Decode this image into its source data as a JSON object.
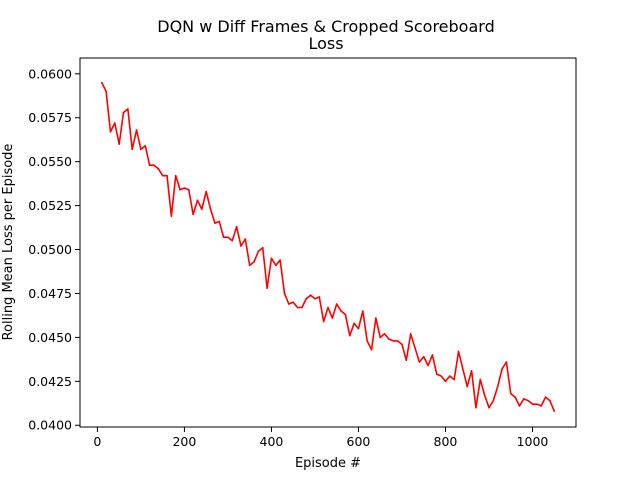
{
  "chart_data": {
    "type": "line",
    "title_line1": "DQN w Diff Frames & Cropped Scoreboard",
    "title_line2": "Loss",
    "xlabel": "Episode #",
    "ylabel": "Rolling Mean Loss per Episode",
    "xlim": [
      -40,
      1100
    ],
    "ylim": [
      0.0399,
      0.0609
    ],
    "grid": false,
    "xticks": [
      {
        "value": 0,
        "label": "0"
      },
      {
        "value": 200,
        "label": "200"
      },
      {
        "value": 400,
        "label": "400"
      },
      {
        "value": 600,
        "label": "600"
      },
      {
        "value": 800,
        "label": "800"
      },
      {
        "value": 1000,
        "label": "1000"
      }
    ],
    "yticks": [
      {
        "value": 0.04,
        "label": "0.0400"
      },
      {
        "value": 0.0425,
        "label": "0.0425"
      },
      {
        "value": 0.045,
        "label": "0.0450"
      },
      {
        "value": 0.0475,
        "label": "0.0475"
      },
      {
        "value": 0.05,
        "label": "0.0500"
      },
      {
        "value": 0.0525,
        "label": "0.0525"
      },
      {
        "value": 0.055,
        "label": "0.0550"
      },
      {
        "value": 0.0575,
        "label": "0.0575"
      },
      {
        "value": 0.06,
        "label": "0.0600"
      }
    ],
    "series": [
      {
        "color": "#ff0000",
        "x": [
          10,
          20,
          30,
          40,
          50,
          60,
          70,
          80,
          90,
          100,
          110,
          120,
          130,
          140,
          150,
          160,
          170,
          180,
          190,
          200,
          210,
          220,
          230,
          240,
          250,
          260,
          270,
          280,
          290,
          300,
          310,
          320,
          330,
          340,
          350,
          360,
          370,
          380,
          390,
          400,
          410,
          420,
          430,
          440,
          450,
          460,
          470,
          480,
          490,
          500,
          510,
          520,
          530,
          540,
          550,
          560,
          570,
          580,
          590,
          600,
          610,
          620,
          630,
          640,
          650,
          660,
          670,
          680,
          690,
          700,
          710,
          720,
          730,
          740,
          750,
          760,
          770,
          780,
          790,
          800,
          810,
          820,
          830,
          840,
          850,
          860,
          870,
          880,
          890,
          900,
          910,
          920,
          930,
          940,
          950,
          960,
          970,
          980,
          990,
          1000,
          1010,
          1020,
          1030,
          1040,
          1050
        ],
        "y": [
          0.0595,
          0.059,
          0.0567,
          0.0572,
          0.056,
          0.0578,
          0.058,
          0.0557,
          0.0568,
          0.0557,
          0.0559,
          0.0548,
          0.0548,
          0.0546,
          0.0542,
          0.0542,
          0.0519,
          0.0542,
          0.0534,
          0.0535,
          0.0534,
          0.052,
          0.0528,
          0.0523,
          0.0533,
          0.0523,
          0.0515,
          0.0516,
          0.0507,
          0.0507,
          0.0505,
          0.0513,
          0.0502,
          0.0506,
          0.0491,
          0.0493,
          0.0499,
          0.0501,
          0.0478,
          0.0495,
          0.0491,
          0.0494,
          0.0475,
          0.0469,
          0.047,
          0.0467,
          0.0467,
          0.0472,
          0.0474,
          0.0472,
          0.0473,
          0.0459,
          0.0467,
          0.0461,
          0.0469,
          0.0465,
          0.0463,
          0.0451,
          0.0458,
          0.0455,
          0.0465,
          0.0448,
          0.0443,
          0.0461,
          0.045,
          0.0452,
          0.0449,
          0.0448,
          0.0448,
          0.0446,
          0.0437,
          0.0452,
          0.0444,
          0.0436,
          0.0439,
          0.0434,
          0.044,
          0.0429,
          0.0428,
          0.0425,
          0.0428,
          0.0426,
          0.0442,
          0.0432,
          0.0422,
          0.0431,
          0.041,
          0.0426,
          0.0417,
          0.041,
          0.0414,
          0.0422,
          0.0432,
          0.0436,
          0.0418,
          0.0416,
          0.0411,
          0.0415,
          0.0414,
          0.0412,
          0.0412,
          0.0411,
          0.0416,
          0.0414,
          0.0408
        ]
      }
    ]
  }
}
